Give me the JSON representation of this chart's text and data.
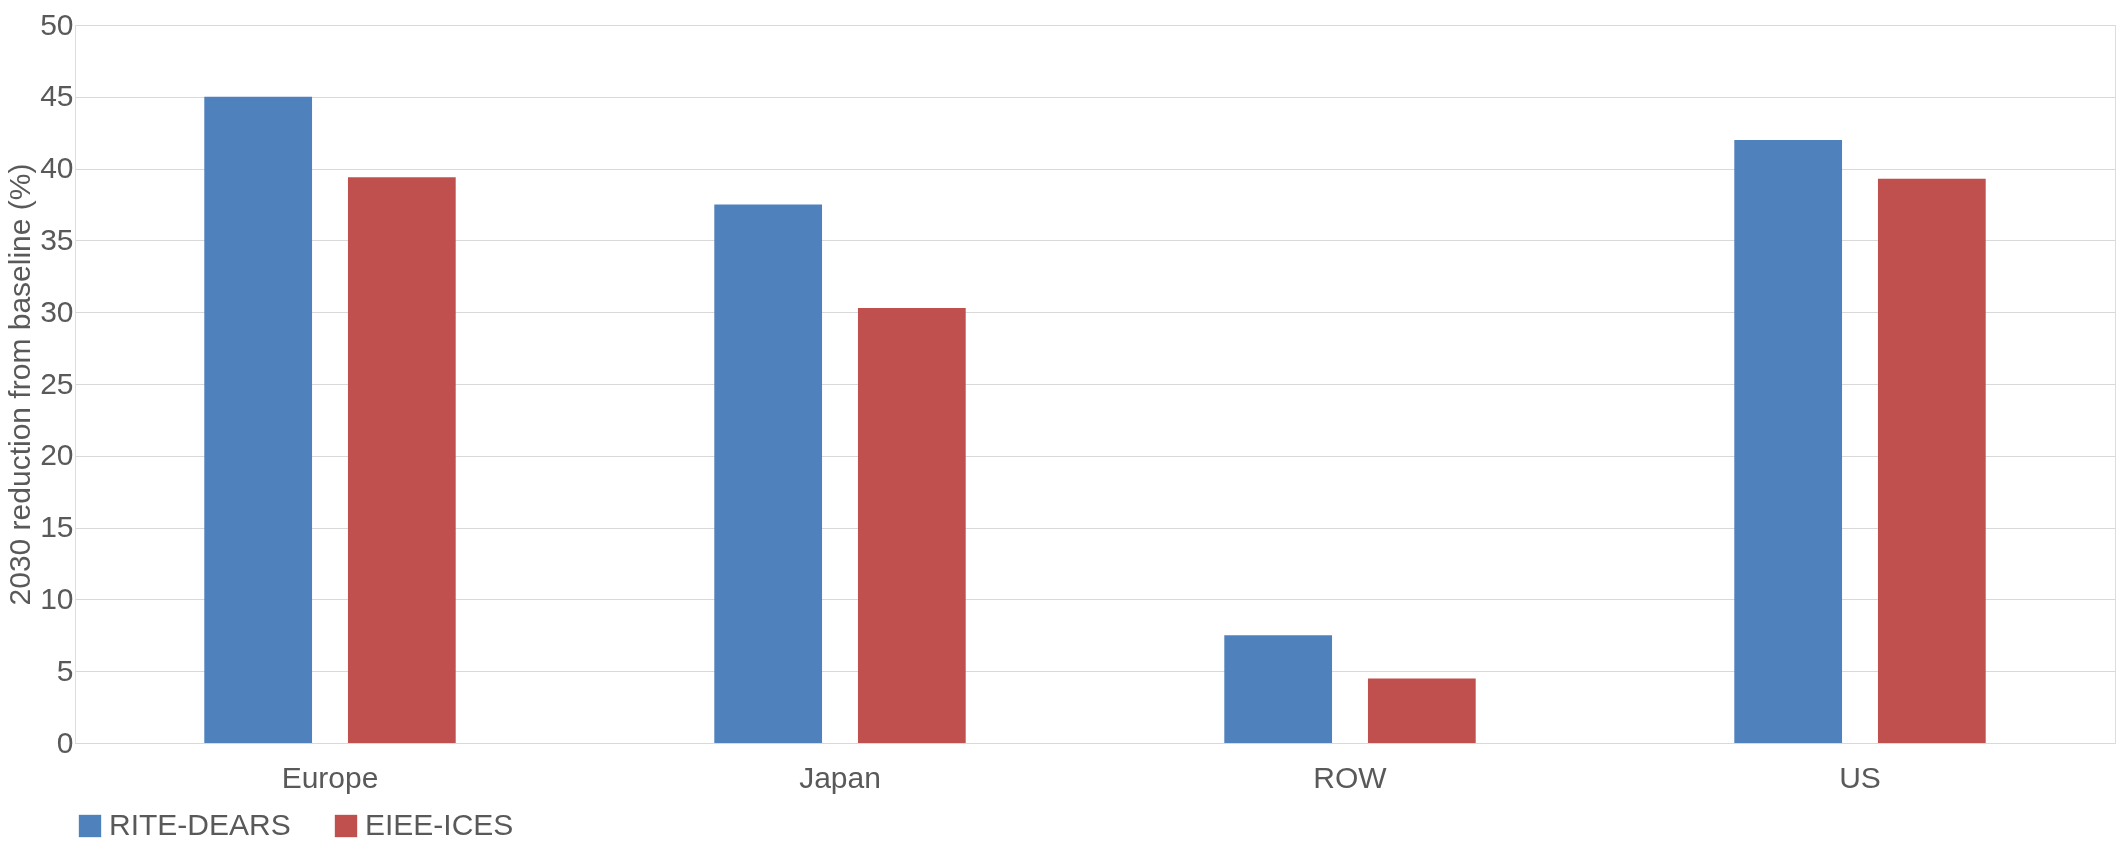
{
  "chart_data": {
    "type": "bar",
    "ylabel": "2030 reduction from baseline (%)",
    "categories": [
      "Europe",
      "Japan",
      "ROW",
      "US"
    ],
    "series": [
      {
        "name": "RITE-DEARS",
        "color": "#4f81bd",
        "values": [
          45,
          37.5,
          7.5,
          42
        ]
      },
      {
        "name": "EIEE-ICES",
        "color": "#c0504d",
        "values": [
          39.4,
          30.3,
          4.5,
          39.3
        ]
      }
    ],
    "ylim": [
      0,
      50
    ],
    "yticks": [
      0,
      5,
      10,
      15,
      20,
      25,
      30,
      35,
      40,
      45,
      50
    ],
    "grid": "y",
    "legend": "bottom"
  }
}
